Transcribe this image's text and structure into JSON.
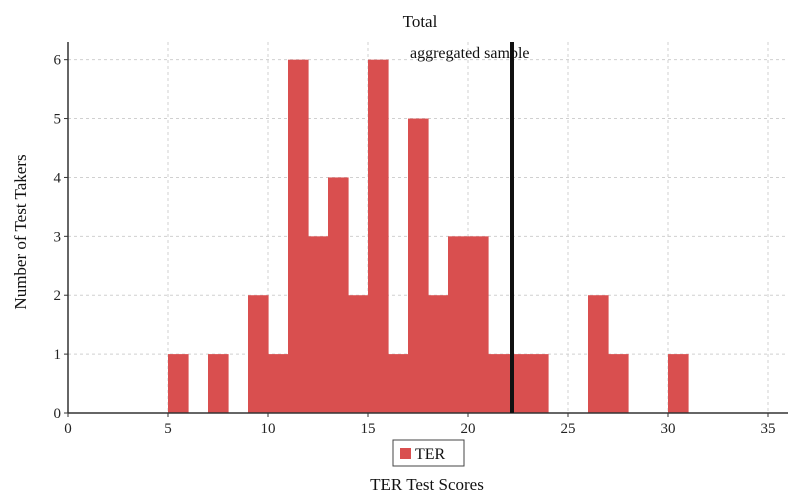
{
  "chart_data": {
    "type": "bar",
    "title": "Total",
    "annotation": "aggregated sample",
    "xlabel": "TER Test Scores",
    "ylabel": "Number of Test Takers",
    "xlim": [
      0,
      36
    ],
    "ylim": [
      0,
      6.3
    ],
    "x_ticks": [
      0,
      5,
      10,
      15,
      20,
      25,
      30,
      35
    ],
    "y_ticks": [
      0,
      1,
      2,
      3,
      4,
      5,
      6
    ],
    "grid": true,
    "legend": {
      "position": "bottom-center",
      "entries": [
        "TER"
      ]
    },
    "bin_width": 1,
    "vertical_line": {
      "x": 22.2
    },
    "series": [
      {
        "name": "TER",
        "color": "#d94f4f",
        "x": [
          5,
          7,
          9,
          10,
          11,
          12,
          13,
          14,
          15,
          16,
          17,
          18,
          19,
          20,
          21,
          22,
          23,
          26,
          27,
          30
        ],
        "values": [
          1,
          1,
          2,
          1,
          6,
          3,
          4,
          2,
          6,
          1,
          5,
          2,
          3,
          3,
          1,
          1,
          1,
          2,
          1,
          1
        ]
      }
    ],
    "colors": {
      "bar": "#d94f4f",
      "grid": "#d0d0d0",
      "axis": "#333333",
      "marker_line": "#111111"
    }
  }
}
